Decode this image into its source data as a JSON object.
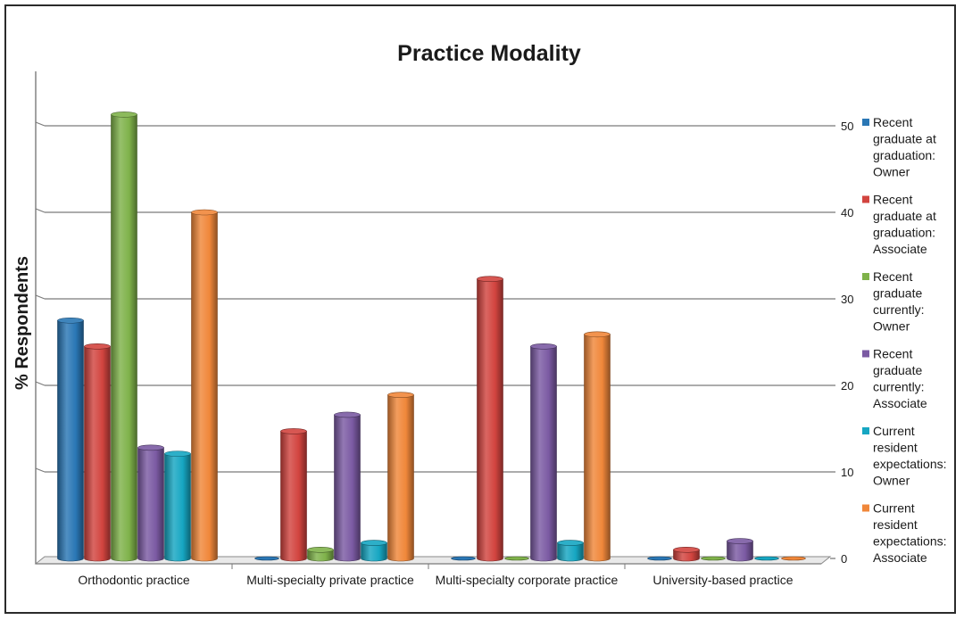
{
  "chart_data": {
    "type": "bar",
    "title": "Practice Modality",
    "ylabel": "% Respondents",
    "xlabel": "",
    "ylim": [
      0,
      50
    ],
    "yticks": [
      0,
      10,
      20,
      30,
      40,
      50
    ],
    "grid": true,
    "legend_position": "right",
    "categories": [
      "Orthodontic practice",
      "Multi-specialty private practice",
      "Multi-specialty corporate practice",
      "University-based practice"
    ],
    "series": [
      {
        "name": "Recent graduate at graduation: Owner",
        "label_lines": [
          "Recent",
          "graduate at",
          "graduation:",
          "Owner"
        ],
        "color": "#2a77b5",
        "values": [
          27.5,
          0,
          0,
          0
        ]
      },
      {
        "name": "Recent graduate at graduation: Associate",
        "label_lines": [
          "Recent",
          "graduate at",
          "graduation:",
          "Associate"
        ],
        "color": "#d2443f",
        "values": [
          24.5,
          14.7,
          32.3,
          1.0
        ]
      },
      {
        "name": "Recent graduate currently: Owner",
        "label_lines": [
          "Recent",
          "graduate",
          "currently:",
          "Owner"
        ],
        "color": "#7fb24a",
        "values": [
          51.3,
          1.0,
          0,
          0
        ]
      },
      {
        "name": "Recent graduate currently: Associate",
        "label_lines": [
          "Recent",
          "graduate",
          "currently:",
          "Associate"
        ],
        "color": "#7b5aa3",
        "values": [
          12.8,
          16.6,
          24.5,
          2.0
        ]
      },
      {
        "name": "Current resident expectations: Owner",
        "label_lines": [
          "Current",
          "resident",
          "expectations:",
          "Owner"
        ],
        "color": "#16a6c2",
        "values": [
          12.1,
          1.8,
          1.8,
          0
        ]
      },
      {
        "name": "Current resident expectations: Associate",
        "label_lines": [
          "Current",
          "resident",
          "expectations:",
          "Associate"
        ],
        "color": "#f0873a",
        "values": [
          40,
          18.9,
          25.9,
          0
        ]
      }
    ]
  }
}
